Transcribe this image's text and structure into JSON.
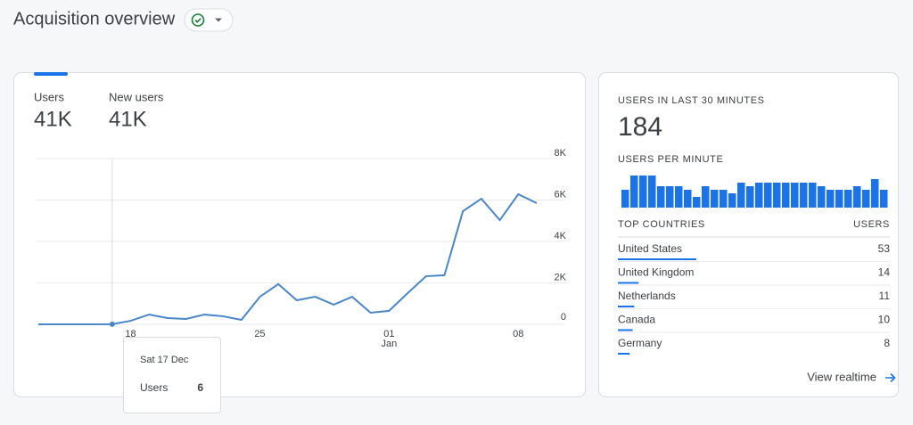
{
  "header": {
    "title": "Acquisition overview"
  },
  "overview_card": {
    "tabs": [
      {
        "label": "Users",
        "value": "41K"
      },
      {
        "label": "New users",
        "value": "41K"
      }
    ],
    "chart": {
      "type": "line",
      "categories": [
        null,
        null,
        null,
        null,
        null,
        "18",
        null,
        null,
        null,
        null,
        null,
        null,
        "25",
        null,
        null,
        null,
        null,
        null,
        null,
        "01",
        null,
        null,
        null,
        null,
        null,
        null,
        "08",
        null
      ],
      "sublabels": [
        null,
        null,
        null,
        null,
        null,
        null,
        null,
        null,
        null,
        null,
        null,
        null,
        null,
        null,
        null,
        null,
        null,
        null,
        null,
        "Jan",
        null,
        null,
        null,
        null,
        null,
        null,
        null,
        null
      ],
      "values": [
        0,
        0,
        0,
        0,
        6,
        170,
        470,
        300,
        260,
        470,
        390,
        215,
        1330,
        1940,
        1160,
        1330,
        950,
        1330,
        560,
        650,
        1500,
        2320,
        2370,
        5460,
        6060,
        5030,
        6280,
        5850
      ],
      "color": "#4a86c8",
      "ylim": [
        0,
        8000
      ],
      "yticks": [
        {
          "value": 0,
          "label": "0"
        },
        {
          "value": 2000,
          "label": "2K"
        },
        {
          "value": 4000,
          "label": "4K"
        },
        {
          "value": 6000,
          "label": "6K"
        },
        {
          "value": 8000,
          "label": "8K"
        }
      ],
      "grid": true,
      "tooltip": {
        "date": "Sat 17 Dec",
        "label": "Users",
        "value": 6
      }
    }
  },
  "realtime_card": {
    "title": "USERS IN LAST 30 MINUTES",
    "value": "184",
    "per_minute": {
      "type": "bar",
      "title": "USERS PER MINUTE",
      "color": "#1a73e8",
      "values": [
        5,
        9,
        9,
        9,
        6,
        6,
        6,
        5,
        3,
        6,
        5,
        5,
        4,
        7,
        6,
        7,
        7,
        7,
        7,
        7,
        7,
        7,
        6,
        5,
        5,
        5,
        6,
        5,
        8,
        5
      ]
    },
    "table": {
      "headers": [
        "TOP COUNTRIES",
        "USERS"
      ],
      "rows": [
        {
          "country": "United States",
          "users": 53
        },
        {
          "country": "United Kingdom",
          "users": 14
        },
        {
          "country": "Netherlands",
          "users": 11
        },
        {
          "country": "Canada",
          "users": 10
        },
        {
          "country": "Germany",
          "users": 8
        }
      ]
    },
    "link": "View realtime"
  }
}
